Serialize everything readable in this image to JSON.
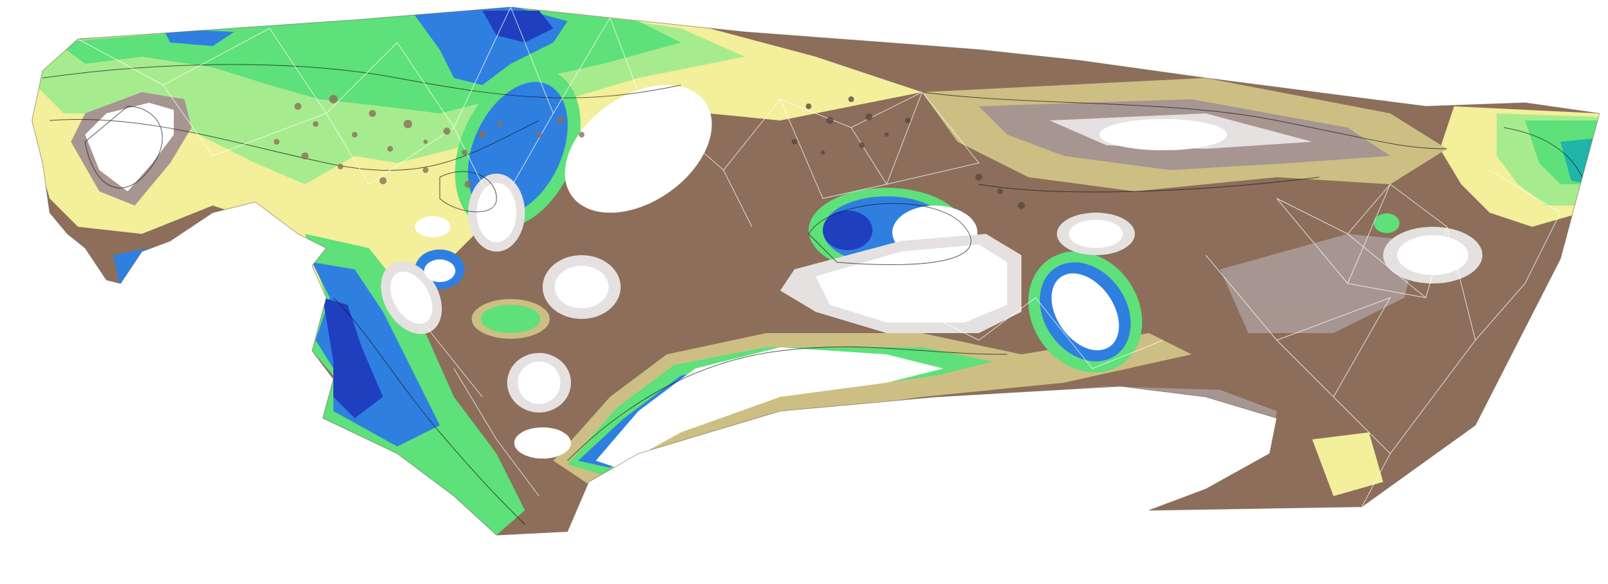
{
  "map": {
    "type": "contour-surface-with-triangulation",
    "palette": {
      "deep": "#1f3fbf",
      "blue": "#2f7fe0",
      "cyan": "#1fb5a8",
      "green": "#5ee07a",
      "lightgreen": "#a6ec8e",
      "yellow": "#f3ef9a",
      "khaki": "#cdbf83",
      "brown": "#8c6e5a",
      "greybrown": "#a79592",
      "lightgrey": "#e6e1e1",
      "white": "#ffffff",
      "mesh": "#ffffff",
      "contour": "#1a1a1a"
    }
  }
}
